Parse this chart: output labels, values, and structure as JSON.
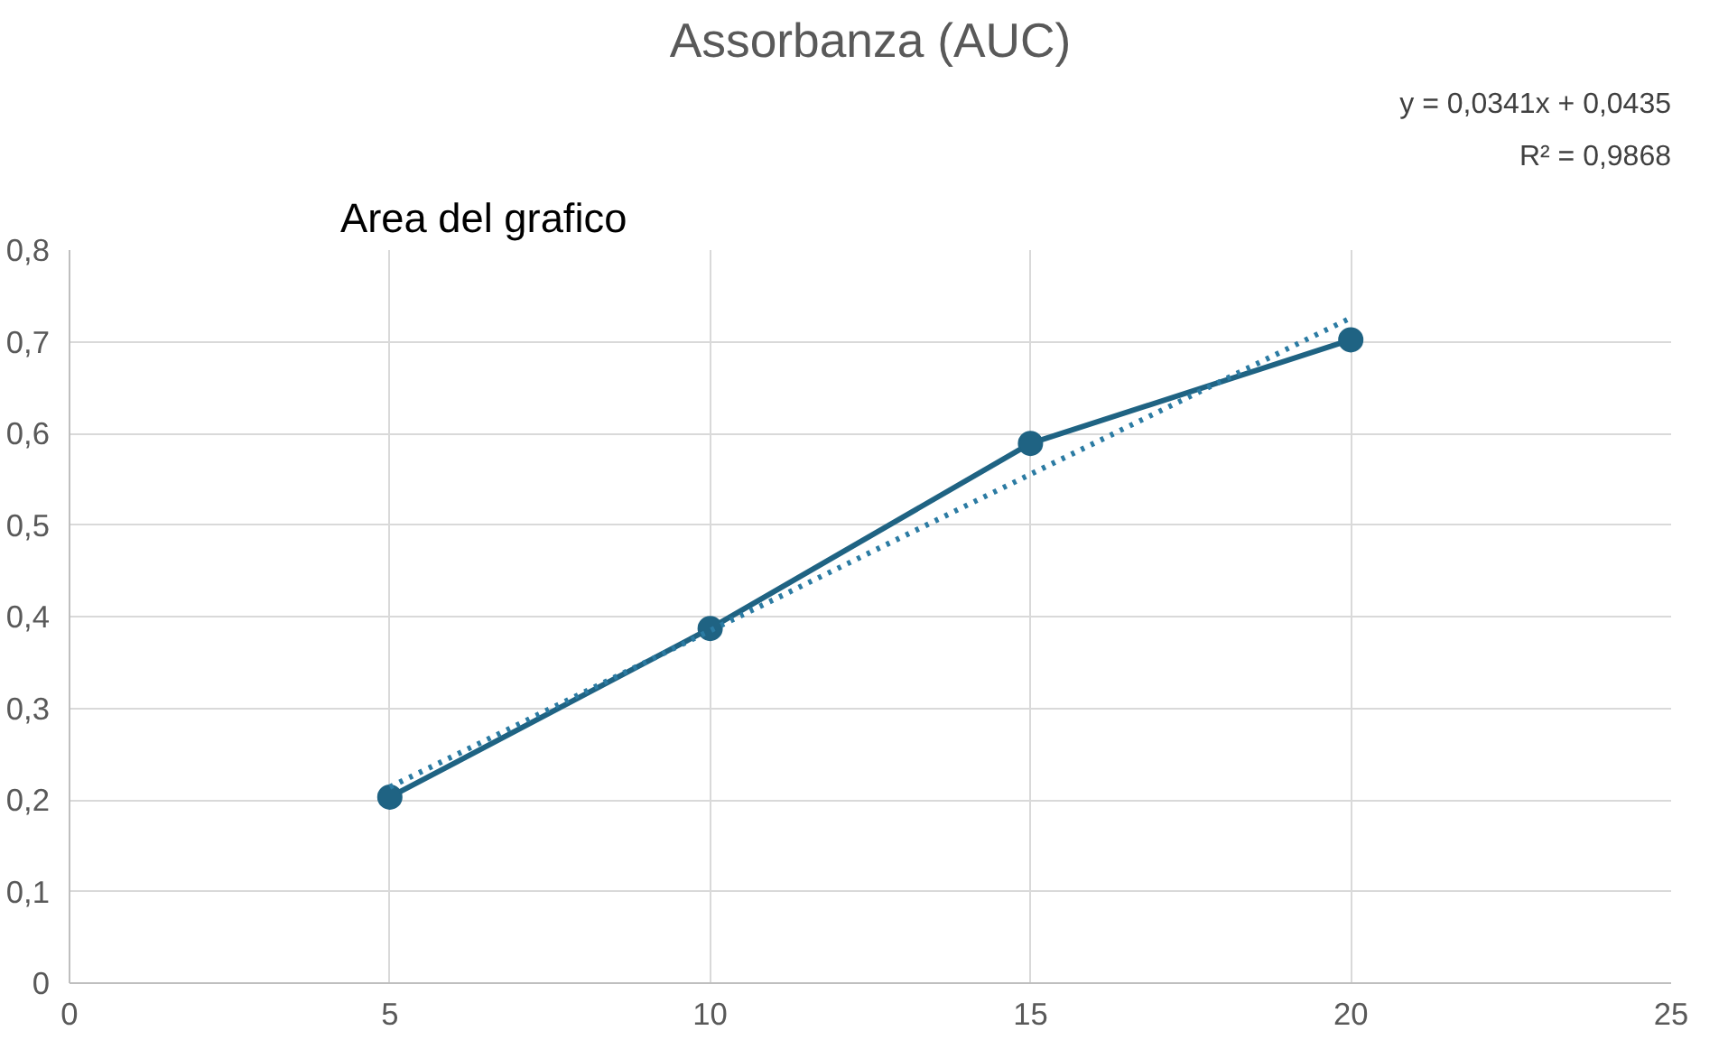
{
  "chart_data": {
    "type": "line",
    "title": "Assorbanza (AUC)",
    "x": [
      5,
      10,
      15,
      20
    ],
    "series": [
      {
        "color": "#1f6383",
        "values": [
          0.203,
          0.387,
          0.589,
          0.702
        ],
        "marker": "circle",
        "line_style": "solid"
      },
      {
        "type": "line",
        "color": "#2b7ba3",
        "x": [
          5,
          20
        ],
        "values": [
          0.214,
          0.726
        ],
        "marker": "none",
        "line_style": "dotted"
      }
    ],
    "xlim": [
      0,
      25
    ],
    "xticks": [
      0,
      5,
      10,
      15,
      20,
      25
    ],
    "ylim": [
      0,
      0.8
    ],
    "yticks": [
      0,
      {
        "value": 0.1,
        "label": "0,1"
      },
      {
        "value": 0.2,
        "label": "0,2"
      },
      {
        "value": 0.3,
        "label": "0,3"
      },
      {
        "value": 0.4,
        "label": "0,4"
      },
      {
        "value": 0.5,
        "label": "0,5"
      },
      {
        "value": 0.6,
        "label": "0,6"
      },
      {
        "value": 0.7,
        "label": "0,7"
      },
      {
        "value": 0.8,
        "label": "0,8"
      }
    ],
    "grid": true,
    "annotations": [
      "y = 0,0341x + 0,0435",
      "R² = 0,9868",
      "Area del grafico"
    ]
  }
}
